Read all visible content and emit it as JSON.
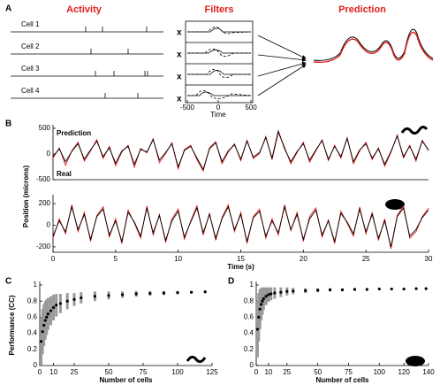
{
  "panel_labels": [
    "A",
    "B",
    "C",
    "D"
  ],
  "panel_a": {
    "headers": [
      "Activity",
      "Filters",
      "Prediction"
    ],
    "cells": [
      "Cell 1",
      "Cell 2",
      "Cell 3",
      "Cell 4"
    ],
    "operator": "x",
    "filter_ticks": [
      "-500",
      "0",
      "500"
    ],
    "filter_xlabel": "Time"
  },
  "chart_data": [
    {
      "type": "line",
      "ylabel": "Position (microns)",
      "xlim": [
        0,
        30
      ],
      "ylim": [
        -500,
        500
      ],
      "yticks": [
        -500,
        0,
        500
      ],
      "x": [
        0,
        0.5,
        1,
        1.5,
        2,
        2.5,
        3,
        3.5,
        4,
        4.5,
        5,
        5.5,
        6,
        6.5,
        7,
        7.5,
        8,
        8.5,
        9,
        9.5,
        10,
        10.5,
        11,
        11.5,
        12,
        12.5,
        13,
        13.5,
        14,
        14.5,
        15,
        15.5,
        16,
        16.5,
        17,
        17.5,
        18,
        18.5,
        19,
        19.5,
        20,
        20.5,
        21,
        21.5,
        22,
        22.5,
        23,
        23.5,
        24,
        24.5,
        25,
        25.5,
        26,
        26.5,
        27,
        27.5,
        28,
        28.5,
        29,
        29.5,
        30
      ],
      "series": [
        {
          "name": "Real",
          "color": "#e0201b",
          "values": [
            -80,
            120,
            -220,
            60,
            230,
            -140,
            60,
            280,
            -90,
            150,
            -230,
            40,
            170,
            -260,
            110,
            20,
            300,
            -170,
            10,
            220,
            -290,
            90,
            170,
            -110,
            -330,
            120,
            240,
            -190,
            40,
            200,
            -130,
            270,
            -90,
            10,
            340,
            -110,
            420,
            130,
            -190,
            30,
            230,
            -160,
            60,
            280,
            -130,
            170,
            -80,
            320,
            -190,
            60,
            230,
            -110,
            120,
            -240,
            30,
            370,
            -80,
            170,
            -140,
            270,
            60
          ]
        },
        {
          "name": "Prediction",
          "color": "#000000",
          "values": [
            -50,
            100,
            -150,
            50,
            200,
            -100,
            80,
            250,
            -50,
            120,
            -180,
            60,
            150,
            -200,
            90,
            40,
            280,
            -120,
            30,
            200,
            -250,
            70,
            150,
            -80,
            -300,
            100,
            220,
            -150,
            60,
            180,
            -100,
            250,
            -60,
            30,
            320,
            -80,
            450,
            100,
            -150,
            50,
            200,
            -120,
            80,
            260,
            -100,
            150,
            -50,
            300,
            -150,
            80,
            200,
            -80,
            100,
            -200,
            50,
            350,
            -50,
            150,
            -100,
            250,
            80
          ]
        }
      ]
    },
    {
      "type": "line",
      "xlabel": "Time (s)",
      "xlim": [
        0,
        30
      ],
      "ylim": [
        -250,
        250
      ],
      "yticks": [
        -200,
        0,
        200
      ],
      "xticks": [
        0,
        5,
        10,
        15,
        20,
        25,
        30
      ],
      "x": [
        0,
        0.5,
        1,
        1.5,
        2,
        2.5,
        3,
        3.5,
        4,
        4.5,
        5,
        5.5,
        6,
        6.5,
        7,
        7.5,
        8,
        8.5,
        9,
        9.5,
        10,
        10.5,
        11,
        11.5,
        12,
        12.5,
        13,
        13.5,
        14,
        14.5,
        15,
        15.5,
        16,
        16.5,
        17,
        17.5,
        18,
        18.5,
        19,
        19.5,
        20,
        20.5,
        21,
        21.5,
        22,
        22.5,
        23,
        23.5,
        24,
        24.5,
        25,
        25.5,
        26,
        26.5,
        27,
        27.5,
        28,
        28.5,
        29,
        29.5,
        30
      ],
      "series": [
        {
          "color": "#e0201b",
          "values": [
            -120,
            60,
            -80,
            190,
            -60,
            120,
            -150,
            90,
            170,
            -110,
            60,
            -170,
            140,
            20,
            -120,
            180,
            -90,
            100,
            -160,
            60,
            150,
            -130,
            40,
            180,
            -90,
            110,
            -140,
            70,
            190,
            -60,
            120,
            -170,
            80,
            150,
            -120,
            60,
            -90,
            190,
            -50,
            120,
            -150,
            80,
            160,
            -110,
            50,
            -170,
            130,
            20,
            -100,
            170,
            -80,
            120,
            -140,
            60,
            -220,
            90,
            180,
            -120,
            -60,
            80,
            160
          ]
        },
        {
          "color": "#000000",
          "values": [
            -100,
            40,
            -60,
            170,
            -40,
            100,
            -130,
            80,
            150,
            -90,
            40,
            -150,
            120,
            30,
            -100,
            160,
            -70,
            90,
            -140,
            40,
            130,
            -110,
            30,
            160,
            -70,
            100,
            -120,
            60,
            170,
            -40,
            100,
            -150,
            70,
            130,
            -100,
            40,
            -70,
            170,
            -40,
            100,
            -130,
            60,
            140,
            -90,
            40,
            -150,
            110,
            30,
            -80,
            150,
            -60,
            100,
            -120,
            40,
            -200,
            80,
            160,
            -100,
            -40,
            70,
            140
          ]
        }
      ]
    },
    {
      "type": "scatter",
      "ylabel": "Performance (CC)",
      "xlabel": "Number of cells",
      "xlim": [
        0,
        125
      ],
      "ylim": [
        0,
        1
      ],
      "xticks": [
        0,
        10,
        25,
        50,
        75,
        100,
        125
      ],
      "yticks": [
        0,
        0.2,
        0.4,
        0.6,
        0.8,
        1
      ],
      "x": [
        1,
        2,
        3,
        4,
        5,
        6,
        8,
        10,
        12,
        15,
        20,
        25,
        30,
        40,
        50,
        60,
        70,
        80,
        90,
        100,
        110,
        120
      ],
      "values": [
        0.3,
        0.42,
        0.5,
        0.56,
        0.6,
        0.64,
        0.68,
        0.72,
        0.75,
        0.77,
        0.8,
        0.82,
        0.84,
        0.86,
        0.87,
        0.88,
        0.89,
        0.895,
        0.9,
        0.905,
        0.91,
        0.915
      ],
      "errors": [
        0.3,
        0.28,
        0.26,
        0.24,
        0.22,
        0.2,
        0.18,
        0.16,
        0.14,
        0.12,
        0.1,
        0.08,
        0.07,
        0.06,
        0.05,
        0.04,
        0.035,
        0.03,
        0.025,
        0.02,
        0.015,
        0.01
      ],
      "color": "#000000",
      "error_color": "#999999"
    },
    {
      "type": "scatter",
      "xlabel": "Number of cells",
      "xlim": [
        0,
        140
      ],
      "ylim": [
        0,
        1
      ],
      "xticks": [
        0,
        10,
        25,
        50,
        75,
        100,
        120,
        140
      ],
      "yticks": [
        0,
        0.2,
        0.4,
        0.6,
        0.8,
        1
      ],
      "x": [
        1,
        2,
        3,
        4,
        5,
        6,
        8,
        10,
        12,
        15,
        20,
        25,
        30,
        40,
        50,
        60,
        70,
        80,
        90,
        100,
        110,
        120,
        130,
        138
      ],
      "values": [
        0.45,
        0.6,
        0.7,
        0.76,
        0.8,
        0.83,
        0.86,
        0.88,
        0.89,
        0.9,
        0.91,
        0.92,
        0.925,
        0.93,
        0.935,
        0.94,
        0.94,
        0.945,
        0.945,
        0.95,
        0.95,
        0.95,
        0.955,
        0.955
      ],
      "errors": [
        0.35,
        0.3,
        0.25,
        0.2,
        0.17,
        0.14,
        0.11,
        0.09,
        0.08,
        0.07,
        0.06,
        0.05,
        0.04,
        0.03,
        0.025,
        0.02,
        0.018,
        0.015,
        0.012,
        0.01,
        0.01,
        0.008,
        0.006,
        0.005
      ],
      "color": "#000000",
      "error_color": "#999999"
    }
  ]
}
